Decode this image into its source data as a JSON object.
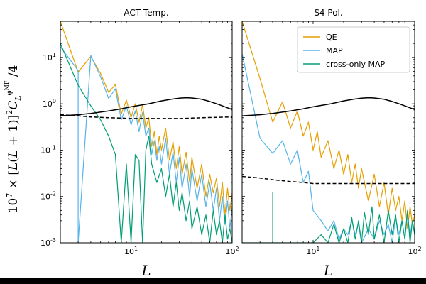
{
  "figure": {
    "ylabel": "10^7 × [L(L+1)]^2 C_L^{φ^MF} / 4",
    "background": "#ffffff",
    "frame_color": "#000000"
  },
  "chart_data": [
    {
      "type": "line",
      "title": "ACT Temp.",
      "xlabel": "L",
      "ylabel": "10^7 × [L(L+1)]^2 C_L^{φ^MF} / 4",
      "xscale": "log",
      "yscale": "log",
      "xlim": [
        2,
        100
      ],
      "ylim": [
        0.001,
        60
      ],
      "x_tick_labels": [
        "10^1",
        "10^2"
      ],
      "y_tick_labels": [
        "10^-3",
        "10^-2",
        "10^-1",
        "10^0",
        "10^1"
      ],
      "grid": false,
      "series": [
        {
          "name": "QE",
          "color": "#E69F00",
          "x": [
            2,
            3,
            4,
            5,
            6,
            7,
            8,
            9,
            10,
            11,
            12,
            13,
            14,
            15,
            16,
            17,
            18,
            19,
            20,
            22,
            24,
            26,
            28,
            30,
            32,
            35,
            38,
            40,
            45,
            50,
            55,
            60,
            65,
            70,
            75,
            80,
            85,
            90,
            95,
            100
          ],
          "y": [
            60,
            4.8,
            10.5,
            4.5,
            1.75,
            2.6,
            0.6,
            1.2,
            0.5,
            1.0,
            0.4,
            0.95,
            0.3,
            0.5,
            0.12,
            0.25,
            0.08,
            0.2,
            0.1,
            0.3,
            0.06,
            0.15,
            0.04,
            0.12,
            0.03,
            0.09,
            0.02,
            0.07,
            0.015,
            0.05,
            0.01,
            0.03,
            0.012,
            0.025,
            0.006,
            0.02,
            0.004,
            0.015,
            0.005,
            0.012
          ]
        },
        {
          "name": "MAP",
          "color": "#56B4E9",
          "x": [
            2,
            3,
            3,
            4,
            5,
            6,
            7,
            8,
            9,
            10,
            11,
            12,
            13,
            14,
            15,
            16,
            17,
            18,
            19,
            20,
            22,
            24,
            26,
            28,
            30,
            32,
            35,
            38,
            40,
            45,
            50,
            55,
            60,
            65,
            70,
            75,
            80,
            85,
            90,
            95,
            100
          ],
          "y": [
            17,
            5.2,
            0.001,
            11,
            3.8,
            1.3,
            2.1,
            0.45,
            0.9,
            0.35,
            0.7,
            0.25,
            0.65,
            0.2,
            0.3,
            0.08,
            0.16,
            0.06,
            0.12,
            0.05,
            0.18,
            0.03,
            0.09,
            0.02,
            0.07,
            0.015,
            0.05,
            0.01,
            0.04,
            0.008,
            0.03,
            0.006,
            0.02,
            0.005,
            0.015,
            0.003,
            0.01,
            0.0025,
            0.008,
            0.002,
            0.006
          ]
        },
        {
          "name": "cross-only MAP",
          "color": "#009E73",
          "x": [
            2,
            3,
            4,
            5,
            6,
            7,
            8,
            9,
            10,
            11,
            12,
            13,
            14,
            15,
            16,
            18,
            20,
            22,
            24,
            26,
            28,
            30,
            32,
            35,
            38,
            40,
            45,
            50,
            55,
            60,
            65,
            70,
            75,
            80,
            85,
            90,
            95,
            100
          ],
          "y": [
            20,
            2.5,
            0.9,
            0.45,
            0.2,
            0.08,
            0.001,
            0.05,
            0.001,
            0.08,
            0.06,
            0.001,
            0.1,
            0.2,
            0.05,
            0.02,
            0.04,
            0.01,
            0.03,
            0.006,
            0.02,
            0.005,
            0.012,
            0.003,
            0.008,
            0.002,
            0.006,
            0.0015,
            0.004,
            0.001,
            0.005,
            0.0015,
            0.003,
            0.001,
            0.004,
            0.0012,
            0.002,
            0.001
          ]
        },
        {
          "name": "",
          "color": "#000000",
          "style": "solid",
          "x": [
            2,
            3,
            4,
            6,
            8,
            10,
            15,
            20,
            25,
            30,
            35,
            40,
            50,
            60,
            70,
            80,
            100
          ],
          "y": [
            0.55,
            0.58,
            0.62,
            0.7,
            0.78,
            0.86,
            1.0,
            1.15,
            1.25,
            1.32,
            1.35,
            1.33,
            1.25,
            1.12,
            1.0,
            0.9,
            0.75
          ]
        },
        {
          "name": "",
          "color": "#000000",
          "style": "dashed",
          "x": [
            2,
            3,
            4,
            6,
            8,
            10,
            15,
            20,
            30,
            40,
            50,
            70,
            100
          ],
          "y": [
            0.58,
            0.55,
            0.52,
            0.5,
            0.49,
            0.48,
            0.48,
            0.48,
            0.48,
            0.49,
            0.5,
            0.51,
            0.52
          ]
        }
      ]
    },
    {
      "type": "line",
      "title": "S4 Pol.",
      "xlabel": "L",
      "xscale": "log",
      "yscale": "log",
      "xlim": [
        2,
        100
      ],
      "ylim": [
        0.001,
        60
      ],
      "x_tick_labels": [
        "10^1",
        "10^2"
      ],
      "grid": false,
      "legend": {
        "position": "top-right",
        "entries": [
          "QE",
          "MAP",
          "cross-only MAP"
        ]
      },
      "series": [
        {
          "name": "QE",
          "color": "#E69F00",
          "x": [
            2,
            3,
            4,
            5,
            6,
            7,
            8,
            9,
            10,
            11,
            12,
            14,
            16,
            18,
            20,
            22,
            24,
            26,
            28,
            30,
            35,
            40,
            45,
            50,
            55,
            60,
            65,
            70,
            75,
            80,
            85,
            90,
            95,
            100
          ],
          "y": [
            60,
            3.5,
            0.4,
            1.1,
            0.3,
            0.7,
            0.2,
            0.4,
            0.1,
            0.25,
            0.07,
            0.16,
            0.04,
            0.1,
            0.03,
            0.08,
            0.02,
            0.05,
            0.015,
            0.04,
            0.008,
            0.03,
            0.006,
            0.02,
            0.004,
            0.015,
            0.005,
            0.01,
            0.003,
            0.008,
            0.002,
            0.006,
            0.0025,
            0.004
          ]
        },
        {
          "name": "MAP",
          "color": "#56B4E9",
          "x": [
            2,
            3,
            4,
            5,
            6,
            7,
            8,
            9,
            10,
            12,
            14,
            16,
            18,
            20,
            22,
            24,
            26,
            28,
            30,
            35,
            40,
            45,
            50,
            55,
            60,
            65,
            70,
            75,
            80,
            85,
            90,
            95,
            100
          ],
          "y": [
            12,
            0.18,
            0.085,
            0.16,
            0.05,
            0.1,
            0.02,
            0.035,
            0.005,
            0.003,
            0.0018,
            0.003,
            0.0012,
            0.002,
            0.0015,
            0.003,
            0.0015,
            0.0025,
            0.001,
            0.002,
            0.0012,
            0.003,
            0.0015,
            0.0025,
            0.001,
            0.0035,
            0.0015,
            0.003,
            0.0012,
            0.004,
            0.0014,
            0.003,
            0.0015
          ]
        },
        {
          "name": "cross-only MAP",
          "color": "#009E73",
          "x": [
            2,
            3,
            4,
            4,
            4,
            10,
            12,
            14,
            16,
            18,
            20,
            22,
            24,
            26,
            28,
            30,
            32,
            35,
            38,
            40,
            45,
            50,
            55,
            60,
            65,
            70,
            75,
            80,
            85,
            90,
            95,
            100
          ],
          "y": [
            0.001,
            0.001,
            0.001,
            0.012,
            0.001,
            0.001,
            0.0015,
            0.001,
            0.0025,
            0.001,
            0.002,
            0.001,
            0.0035,
            0.0012,
            0.003,
            0.001,
            0.0045,
            0.0015,
            0.006,
            0.0012,
            0.004,
            0.001,
            0.005,
            0.0015,
            0.004,
            0.001,
            0.003,
            0.0012,
            0.005,
            0.001,
            0.003,
            0.0015
          ]
        },
        {
          "name": "",
          "color": "#000000",
          "style": "solid",
          "x": [
            2,
            3,
            4,
            6,
            8,
            10,
            15,
            20,
            25,
            30,
            35,
            40,
            50,
            60,
            70,
            80,
            100
          ],
          "y": [
            0.55,
            0.58,
            0.62,
            0.7,
            0.78,
            0.86,
            1.0,
            1.15,
            1.25,
            1.32,
            1.35,
            1.33,
            1.25,
            1.12,
            1.0,
            0.9,
            0.75
          ]
        },
        {
          "name": "",
          "color": "#000000",
          "style": "dashed",
          "x": [
            2,
            3,
            4,
            6,
            8,
            10,
            15,
            20,
            30,
            40,
            50,
            70,
            100
          ],
          "y": [
            0.027,
            0.025,
            0.023,
            0.021,
            0.02,
            0.019,
            0.019,
            0.019,
            0.019,
            0.019,
            0.019,
            0.019,
            0.019
          ]
        }
      ]
    }
  ]
}
